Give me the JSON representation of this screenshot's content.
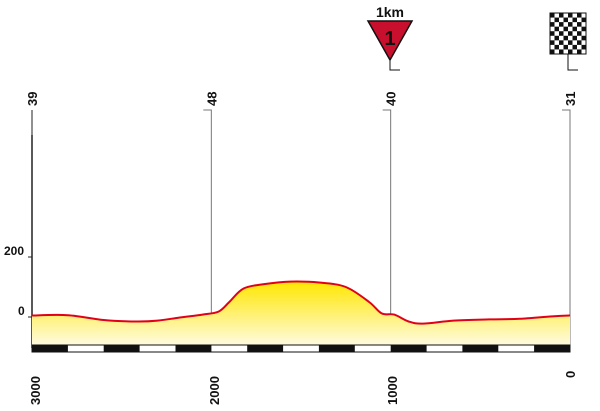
{
  "markers": [
    {
      "label": "39",
      "distance_to_go_m": 3000
    },
    {
      "label": "48",
      "distance_to_go_m": 2000
    },
    {
      "label": "40",
      "distance_to_go_m": 1000
    },
    {
      "label": "31",
      "distance_to_go_m": 0
    }
  ],
  "x_axis": {
    "ticks": [
      "3000",
      "2000",
      "1000",
      "0"
    ],
    "range": [
      3000,
      0
    ]
  },
  "y_axis": {
    "ticks": [
      "200",
      "0"
    ],
    "range": [
      -70,
      350
    ]
  },
  "flamme_rouge": {
    "distance_label": "1km",
    "number": "1"
  },
  "finish_flag": "checkered-flag-icon",
  "colors": {
    "profile_fill_top": "#ffe600",
    "profile_fill_bottom": "#fffbe0",
    "profile_line": "#e0001a",
    "flamme_rouge": "#c8102e",
    "marker_lines": "#777777"
  },
  "elevation_profile": [
    {
      "d": 3000,
      "elev": 5
    },
    {
      "d": 2800,
      "elev": 6
    },
    {
      "d": 2600,
      "elev": -10
    },
    {
      "d": 2420,
      "elev": -15
    },
    {
      "d": 2300,
      "elev": -12
    },
    {
      "d": 2180,
      "elev": -2
    },
    {
      "d": 2050,
      "elev": 8
    },
    {
      "d": 1960,
      "elev": 18
    },
    {
      "d": 1900,
      "elev": 50
    },
    {
      "d": 1820,
      "elev": 95
    },
    {
      "d": 1700,
      "elev": 110
    },
    {
      "d": 1560,
      "elev": 118
    },
    {
      "d": 1400,
      "elev": 115
    },
    {
      "d": 1250,
      "elev": 100
    },
    {
      "d": 1120,
      "elev": 50
    },
    {
      "d": 1050,
      "elev": 12
    },
    {
      "d": 980,
      "elev": 8
    },
    {
      "d": 900,
      "elev": -15
    },
    {
      "d": 820,
      "elev": -22
    },
    {
      "d": 650,
      "elev": -12
    },
    {
      "d": 450,
      "elev": -8
    },
    {
      "d": 280,
      "elev": -6
    },
    {
      "d": 100,
      "elev": 2
    },
    {
      "d": 0,
      "elev": 5
    }
  ]
}
